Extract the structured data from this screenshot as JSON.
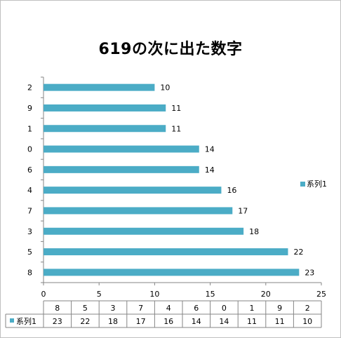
{
  "chart_data": {
    "type": "bar",
    "orientation": "horizontal",
    "title": "619の次に出た数字",
    "categories": [
      "8",
      "5",
      "3",
      "7",
      "4",
      "6",
      "0",
      "1",
      "9",
      "2"
    ],
    "series": [
      {
        "name": "系列1",
        "values": [
          23,
          22,
          18,
          17,
          16,
          14,
          14,
          11,
          11,
          10
        ],
        "color": "#4bacc6"
      }
    ],
    "xlim": [
      0,
      25
    ],
    "xticks": [
      0,
      5,
      10,
      15,
      20,
      25
    ],
    "legend_position": "right",
    "data_table": true,
    "grid": false
  }
}
